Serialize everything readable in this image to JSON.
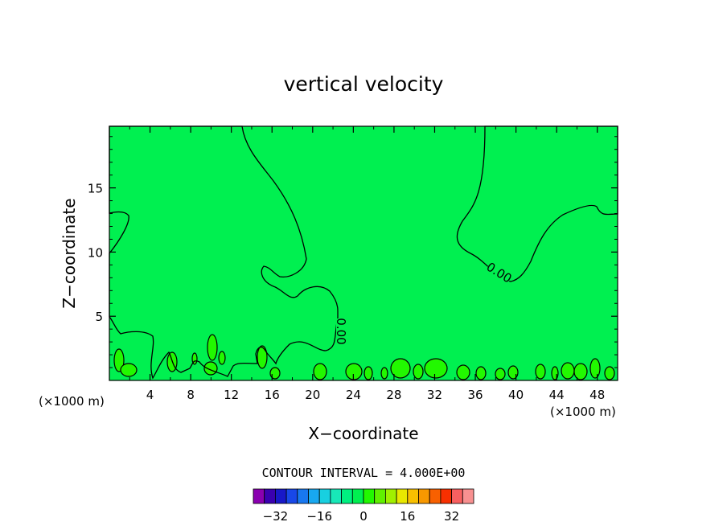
{
  "chart_data": {
    "type": "heatmap",
    "title": "vertical velocity",
    "xlabel": "X−coordinate",
    "ylabel": "Z−coordinate",
    "x_unit_label_left": "(×1000 m)",
    "x_unit_label_right": "(×1000 m)",
    "xlim": [
      0,
      50
    ],
    "ylim": [
      0,
      19.8
    ],
    "x_ticks": [
      4,
      8,
      12,
      16,
      20,
      24,
      28,
      32,
      36,
      40,
      44,
      48
    ],
    "y_ticks": [
      5,
      10,
      15
    ],
    "contour_interval_text": "CONTOUR INTERVAL = 4.000E+00",
    "contour_labels": [
      "0.00",
      "0.00",
      "0.00"
    ],
    "colors": {
      "negative_region": "#00f050",
      "positive_region": "#22f800",
      "positive_strong": "#9af000",
      "contour_line": "#000000"
    },
    "colorbar": {
      "colors": [
        "#8a00b0",
        "#3a00b0",
        "#1818c8",
        "#1848e8",
        "#1878f0",
        "#18a8f0",
        "#18d0e0",
        "#18e8b8",
        "#00f080",
        "#00f050",
        "#22f800",
        "#60f000",
        "#a0f000",
        "#e8e800",
        "#f8c000",
        "#f89800",
        "#f86000",
        "#f83000",
        "#f86060",
        "#f89090"
      ],
      "tick_labels": [
        "−32",
        "−16",
        "0",
        "16",
        "32"
      ],
      "tick_values": [
        -32,
        -16,
        0,
        16,
        32
      ]
    }
  }
}
